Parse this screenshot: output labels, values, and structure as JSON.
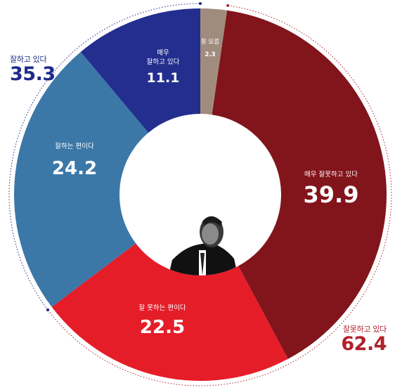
{
  "chart_data": {
    "type": "pie",
    "variant": "donut",
    "title": "",
    "slices": [
      {
        "label": "잘 모름",
        "value": 2.3,
        "color": "#a08c7d"
      },
      {
        "label": "매우 잘못하고 있다",
        "value": 39.9,
        "color": "#82141b"
      },
      {
        "label": "잘 못하는 편이다",
        "value": 22.5,
        "color": "#e51d28"
      },
      {
        "label": "잘하는 편이다",
        "value": 24.2,
        "color": "#3b78a8"
      },
      {
        "label": "매우 잘하고 있다",
        "value": 11.1,
        "color": "#232e8f"
      }
    ],
    "groups": [
      {
        "label": "잘하고 있다",
        "value": 35.3,
        "color": "#1f2a8a"
      },
      {
        "label": "잘못하고 있다",
        "value": 62.4,
        "color": "#b0202a"
      }
    ]
  },
  "slice_labels": {
    "dont_know": {
      "line1": "잘 모름",
      "value": "2.3"
    },
    "very_bad": {
      "line1": "매우 잘못하고 있다",
      "value": "39.9"
    },
    "somewhat_bad": {
      "line1": "잘 못하는 편이다",
      "value": "22.5"
    },
    "somewhat_good": {
      "line1": "잘하는 편이다",
      "value": "24.2"
    },
    "very_good": {
      "line1": "매우",
      "line2": "잘하고 있다",
      "value": "11.1"
    }
  },
  "totals": {
    "positive": {
      "caption": "잘하고 있다",
      "value": "35.3"
    },
    "negative": {
      "caption": "잘못하고 있다",
      "value": "62.4"
    }
  }
}
